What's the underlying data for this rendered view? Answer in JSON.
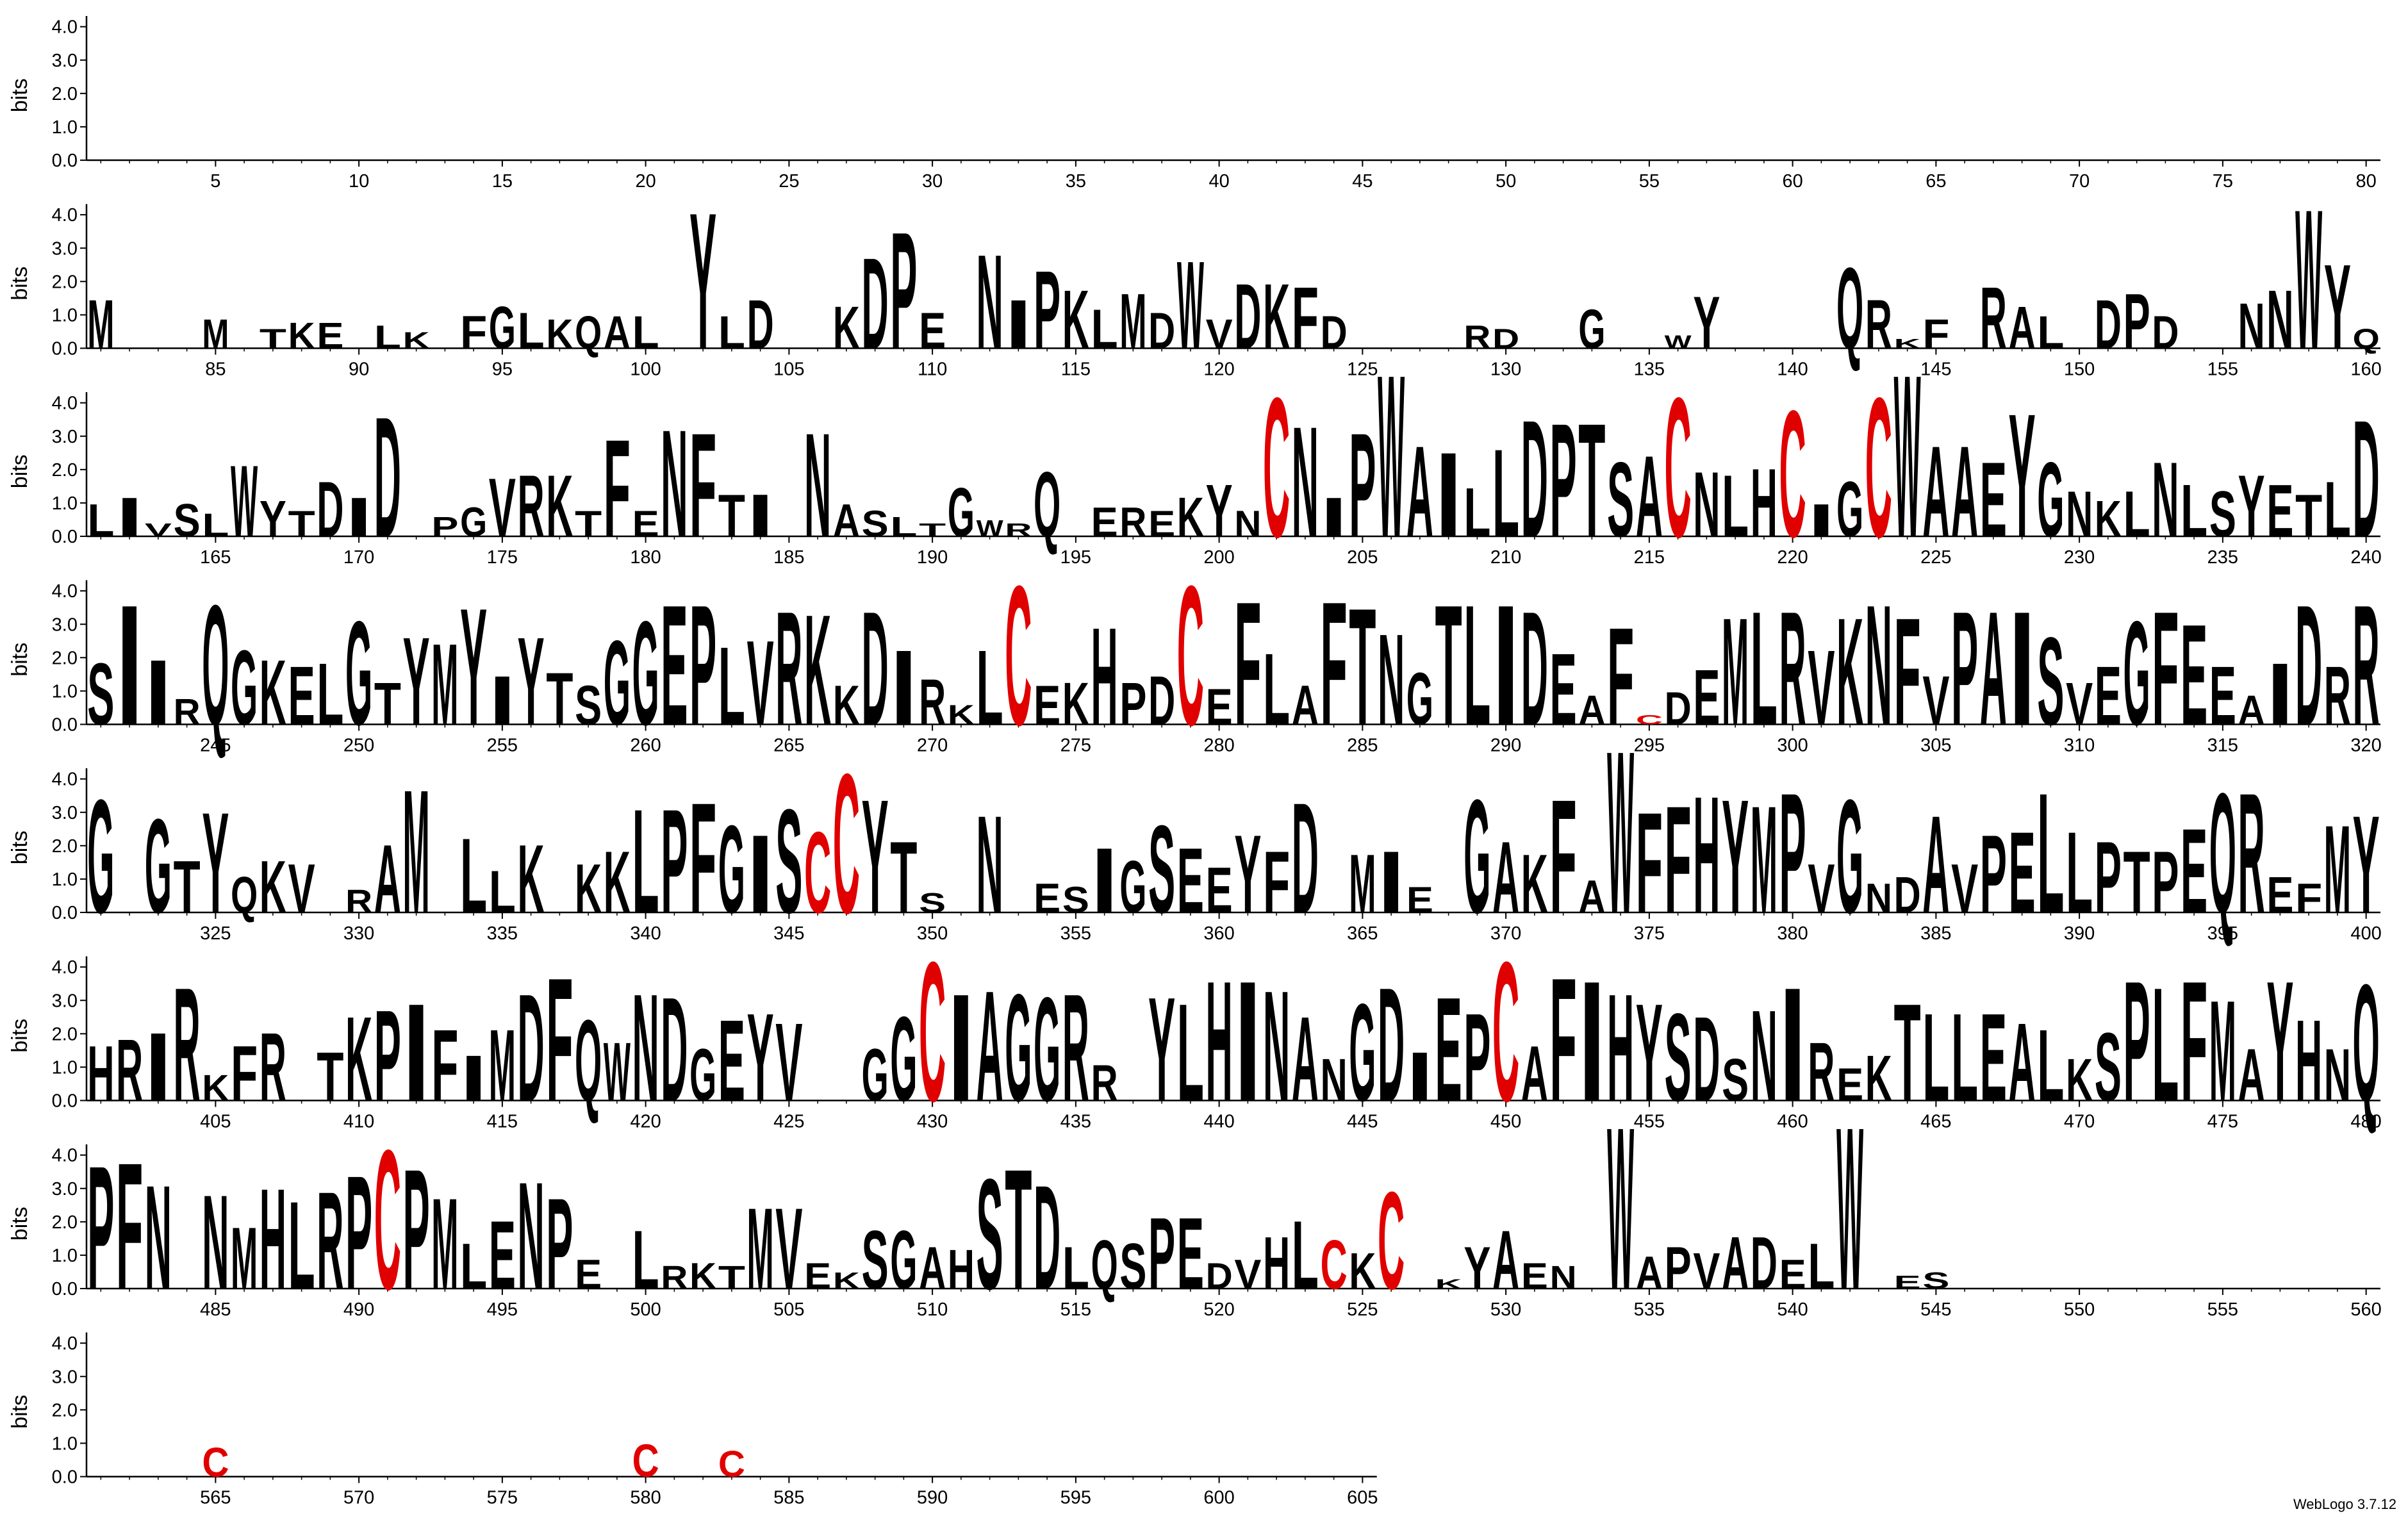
{
  "chart_data": {
    "type": "logo",
    "y_label": "bits",
    "footer": "WebLogo 3.7.12",
    "color": "#000000",
    "letter_colors": {
      "C": "#e00000"
    },
    "ylim": [
      0,
      4.32
    ],
    "yticks": [
      {
        "value": 0,
        "label": "0.0"
      },
      {
        "value": 1,
        "label": "1.0"
      },
      {
        "value": 2,
        "label": "2.0"
      },
      {
        "value": 3,
        "label": "3.0"
      },
      {
        "value": 4,
        "label": "4.0"
      }
    ],
    "xticks": [
      5,
      10,
      15,
      20,
      25,
      30,
      35,
      40,
      45,
      50,
      55,
      60,
      65,
      70,
      75,
      80,
      85,
      90,
      95,
      100,
      105,
      110,
      115,
      120,
      125,
      130,
      135,
      140,
      145,
      150,
      155,
      160,
      165,
      170,
      175,
      180,
      185,
      190,
      195,
      200,
      205,
      210,
      215,
      220,
      225,
      230,
      235,
      240,
      245,
      250,
      255,
      260,
      265,
      270,
      275,
      280,
      285,
      290,
      295,
      300,
      305,
      310,
      315,
      320,
      325,
      330,
      335,
      340,
      345,
      350,
      355,
      360,
      365,
      370,
      375,
      380,
      385,
      390,
      395,
      400,
      405,
      410,
      415,
      420,
      425,
      430,
      435,
      440,
      445,
      450,
      455,
      460,
      465,
      470,
      475,
      480,
      485,
      490,
      495,
      500,
      505,
      510,
      515,
      520,
      525,
      530,
      535,
      540,
      545,
      550,
      555,
      560,
      565,
      570,
      575,
      580,
      585,
      590,
      595,
      600,
      605
    ],
    "letters": [
      null,
      null,
      null,
      null,
      null,
      null,
      null,
      null,
      null,
      null,
      null,
      null,
      null,
      null,
      null,
      null,
      null,
      null,
      null,
      null,
      null,
      null,
      null,
      null,
      null,
      null,
      null,
      null,
      null,
      null,
      null,
      null,
      null,
      null,
      null,
      null,
      null,
      null,
      null,
      null,
      null,
      null,
      null,
      null,
      null,
      null,
      null,
      null,
      null,
      null,
      null,
      null,
      null,
      null,
      null,
      null,
      null,
      null,
      null,
      null,
      null,
      null,
      null,
      null,
      null,
      null,
      null,
      null,
      null,
      null,
      null,
      null,
      null,
      null,
      null,
      null,
      null,
      null,
      null,
      null,
      "M",
      null,
      null,
      null,
      "M",
      null,
      "T",
      "K",
      "E",
      null,
      "L",
      "K",
      null,
      "F",
      "G",
      "L",
      "K",
      "Q",
      "A",
      "L",
      null,
      "Y",
      "L",
      "D",
      null,
      null,
      "K",
      "D",
      "P",
      "E",
      null,
      "N",
      "I",
      "P",
      "K",
      "L",
      "M",
      "D",
      "W",
      "V",
      "D",
      "K",
      "F",
      "D",
      null,
      null,
      null,
      null,
      "R",
      "D",
      null,
      null,
      "G",
      null,
      null,
      "W",
      "Y",
      null,
      null,
      null,
      null,
      "Q",
      "R",
      "K",
      "F",
      null,
      "R",
      "A",
      "L",
      null,
      "D",
      "P",
      "D",
      null,
      null,
      "N",
      "N",
      "W",
      "Y",
      "Q",
      "L",
      "I",
      "V",
      "S",
      "L",
      "W",
      "Y",
      "T",
      "D",
      "I",
      "D",
      null,
      "P",
      "G",
      "V",
      "R",
      "K",
      "T",
      "F",
      "E",
      "N",
      "F",
      "T",
      "I",
      null,
      "N",
      "A",
      "S",
      "L",
      "T",
      "G",
      "W",
      "R",
      "Q",
      null,
      "E",
      "R",
      "E",
      "K",
      "Y",
      "N",
      "C",
      "N",
      "I",
      "P",
      "W",
      "A",
      "I",
      "L",
      "L",
      "D",
      "P",
      "T",
      "S",
      "A",
      "C",
      "N",
      "L",
      "H",
      "C",
      "I",
      "G",
      "C",
      "W",
      "A",
      "A",
      "E",
      "Y",
      "G",
      "N",
      "K",
      "L",
      "N",
      "L",
      "S",
      "Y",
      "E",
      "T",
      "L",
      "D",
      "S",
      "I",
      "I",
      "R",
      "Q",
      "G",
      "K",
      "E",
      "L",
      "G",
      "T",
      "Y",
      "M",
      "Y",
      "I",
      "Y",
      "T",
      "S",
      "G",
      "G",
      "E",
      "P",
      "L",
      "V",
      "R",
      "K",
      "K",
      "D",
      "I",
      "R",
      "K",
      "L",
      "C",
      "E",
      "K",
      "H",
      "P",
      "D",
      "C",
      "E",
      "F",
      "L",
      "A",
      "F",
      "T",
      "N",
      "G",
      "T",
      "L",
      "I",
      "D",
      "E",
      "A",
      "F",
      "C",
      "D",
      "E",
      "M",
      "L",
      "R",
      "V",
      "K",
      "N",
      "F",
      "V",
      "P",
      "A",
      "I",
      "S",
      "V",
      "E",
      "G",
      "F",
      "E",
      "E",
      "A",
      "I",
      "D",
      "R",
      "R",
      "G",
      null,
      "G",
      "T",
      "Y",
      "Q",
      "K",
      "V",
      null,
      "R",
      "A",
      "M",
      null,
      "L",
      "L",
      "K",
      null,
      "K",
      "K",
      "L",
      "P",
      "F",
      "G",
      "I",
      "S",
      "C",
      "C",
      "Y",
      "T",
      "S",
      null,
      "N",
      null,
      "E",
      "S",
      "I",
      "G",
      "S",
      "E",
      "E",
      "Y",
      "F",
      "D",
      null,
      "M",
      "I",
      "E",
      null,
      "G",
      "A",
      "K",
      "F",
      "A",
      "W",
      "F",
      "F",
      "H",
      "Y",
      "M",
      "P",
      "V",
      "G",
      "N",
      "D",
      "A",
      "V",
      "P",
      "E",
      "L",
      "L",
      "P",
      "T",
      "P",
      "E",
      "Q",
      "R",
      "E",
      "F",
      "M",
      "Y",
      "H",
      "R",
      "I",
      "R",
      "K",
      "F",
      "R",
      null,
      "T",
      "K",
      "P",
      "I",
      "F",
      "I",
      "M",
      "D",
      "F",
      "Q",
      "W",
      "N",
      "D",
      "G",
      "E",
      "Y",
      "V",
      null,
      null,
      "G",
      "G",
      "C",
      "I",
      "A",
      "G",
      "G",
      "R",
      "R",
      null,
      "Y",
      "L",
      "H",
      "I",
      "N",
      "A",
      "N",
      "G",
      "D",
      "I",
      "E",
      "P",
      "C",
      "A",
      "F",
      "I",
      "H",
      "Y",
      "S",
      "D",
      "S",
      "N",
      "I",
      "R",
      "E",
      "K",
      "T",
      "L",
      "L",
      "E",
      "A",
      "L",
      "K",
      "S",
      "P",
      "L",
      "F",
      "M",
      "A",
      "Y",
      "H",
      "N",
      "Q",
      "P",
      "F",
      "N",
      null,
      "N",
      "M",
      "H",
      "L",
      "R",
      "P",
      "C",
      "P",
      "M",
      "L",
      "E",
      "N",
      "P",
      "E",
      null,
      "L",
      "R",
      "K",
      "T",
      "M",
      "V",
      "E",
      "K",
      "S",
      "G",
      "A",
      "H",
      "S",
      "T",
      "D",
      "L",
      "Q",
      "S",
      "P",
      "E",
      "D",
      "V",
      "H",
      "L",
      "C",
      "K",
      "C",
      null,
      "K",
      "Y",
      "A",
      "E",
      "N",
      null,
      "W",
      "A",
      "P",
      "V",
      "A",
      "D",
      "E",
      "L",
      "W",
      null,
      "E",
      "S",
      null,
      null,
      null,
      null,
      null,
      null,
      null,
      null,
      null,
      null,
      null,
      null,
      null,
      null,
      null,
      null,
      null,
      null,
      null,
      "C",
      null,
      null,
      null,
      null,
      null,
      null,
      null,
      null,
      null,
      null,
      null,
      null,
      null,
      null,
      "C",
      null,
      null,
      "C",
      null,
      null,
      null,
      null,
      null,
      null,
      null,
      null,
      null,
      null,
      null,
      null,
      null,
      null,
      null,
      null,
      null,
      null,
      null,
      null,
      null,
      null
    ],
    "values": [
      null,
      null,
      null,
      null,
      null,
      null,
      null,
      null,
      null,
      null,
      null,
      null,
      null,
      null,
      null,
      null,
      null,
      null,
      null,
      null,
      null,
      null,
      null,
      null,
      null,
      null,
      null,
      null,
      null,
      null,
      null,
      null,
      null,
      null,
      null,
      null,
      null,
      null,
      null,
      null,
      null,
      null,
      null,
      null,
      null,
      null,
      null,
      null,
      null,
      null,
      null,
      null,
      null,
      null,
      null,
      null,
      null,
      null,
      null,
      null,
      null,
      null,
      null,
      null,
      null,
      null,
      null,
      null,
      null,
      null,
      null,
      null,
      null,
      null,
      null,
      null,
      null,
      null,
      null,
      null,
      1.5,
      null,
      null,
      null,
      0.9,
      null,
      0.6,
      0.8,
      0.8,
      null,
      0.7,
      0.5,
      null,
      1.0,
      1.3,
      1.1,
      0.9,
      1.0,
      1.0,
      1.0,
      null,
      4.2,
      1.0,
      1.5,
      null,
      null,
      1.3,
      2.8,
      3.6,
      1.1,
      null,
      2.9,
      1.5,
      2.4,
      1.8,
      1.2,
      1.7,
      1.1,
      2.7,
      0.9,
      2.0,
      2.0,
      1.9,
      1.0,
      null,
      null,
      null,
      null,
      0.7,
      0.6,
      null,
      null,
      1.2,
      null,
      null,
      0.4,
      1.6,
      null,
      null,
      null,
      null,
      2.5,
      1.5,
      0.3,
      0.9,
      null,
      1.9,
      1.3,
      1.0,
      null,
      1.5,
      1.7,
      1.0,
      null,
      null,
      1.4,
      1.8,
      4.3,
      2.6,
      0.6,
      1.0,
      1.2,
      0.4,
      1.0,
      0.7,
      2.2,
      1.1,
      0.8,
      1.7,
      1.2,
      3.7,
      null,
      0.6,
      0.9,
      1.8,
      1.9,
      1.9,
      0.8,
      3.0,
      0.8,
      3.3,
      3.2,
      1.3,
      1.3,
      null,
      3.2,
      1.0,
      0.8,
      0.6,
      0.4,
      1.5,
      0.5,
      0.4,
      2.0,
      null,
      0.9,
      0.9,
      0.8,
      1.2,
      1.6,
      0.8,
      4.3,
      3.4,
      1.2,
      3.2,
      5.0,
      2.8,
      2.6,
      1.5,
      2.7,
      3.6,
      3.5,
      3.5,
      2.3,
      2.5,
      4.3,
      2.0,
      1.9,
      2.1,
      3.9,
      1.0,
      1.7,
      4.3,
      5.0,
      2.8,
      2.8,
      2.3,
      3.8,
      2.3,
      1.4,
      1.1,
      1.4,
      2.3,
      1.6,
      1.4,
      1.9,
      1.6,
      1.3,
      1.7,
      3.6,
      1.9,
      3.7,
      2.0,
      0.8,
      3.7,
      2.3,
      2.0,
      1.8,
      1.9,
      3.2,
      1.3,
      2.7,
      2.5,
      3.6,
      1.5,
      2.7,
      1.6,
      1.2,
      2.6,
      3.2,
      3.7,
      3.7,
      2.4,
      2.6,
      3.5,
      3.4,
      1.2,
      3.5,
      2.3,
      1.4,
      0.6,
      2.3,
      4.3,
      1.2,
      1.3,
      3.0,
      1.3,
      1.5,
      4.3,
      1.1,
      3.8,
      2.2,
      1.2,
      3.8,
      3.6,
      2.8,
      1.6,
      3.7,
      3.7,
      3.7,
      3.5,
      2.2,
      0.9,
      3.0,
      0.3,
      1.0,
      1.7,
      3.3,
      3.5,
      3.5,
      2.3,
      3.3,
      3.7,
      3.3,
      1.5,
      3.5,
      3.5,
      3.5,
      2.7,
      1.3,
      1.8,
      3.2,
      3.5,
      3.1,
      1.8,
      0.9,
      1.9,
      3.7,
      1.8,
      3.7,
      3.5,
      null,
      2.9,
      1.6,
      3.1,
      1.1,
      1.6,
      1.5,
      null,
      0.7,
      2.1,
      3.8,
      null,
      2.3,
      1.3,
      2.1,
      null,
      1.5,
      1.9,
      3.2,
      3.2,
      3.4,
      2.7,
      2.4,
      3.2,
      2.5,
      4.3,
      3.5,
      2.2,
      0.6,
      null,
      3.0,
      null,
      0.9,
      0.8,
      2.0,
      1.6,
      2.7,
      2.0,
      1.4,
      2.4,
      1.9,
      3.4,
      null,
      1.8,
      1.9,
      0.8,
      null,
      3.5,
      2.2,
      1.8,
      3.5,
      1.0,
      5.0,
      3.1,
      3.3,
      3.6,
      3.5,
      3.3,
      3.7,
      1.5,
      3.5,
      0.9,
      1.1,
      3.0,
      1.5,
      2.4,
      2.5,
      3.7,
      2.5,
      2.2,
      1.9,
      1.9,
      2.6,
      3.7,
      3.7,
      1.1,
      0.9,
      2.7,
      3.0,
      1.7,
      1.9,
      2.1,
      3.5,
      0.8,
      1.7,
      2.1,
      null,
      1.5,
      2.6,
      2.8,
      3.0,
      2.2,
      1.4,
      2.2,
      3.3,
      3.8,
      2.5,
      1.8,
      3.3,
      3.2,
      1.6,
      2.5,
      2.7,
      2.4,
      null,
      null,
      1.6,
      2.6,
      4.3,
      3.3,
      3.4,
      3.3,
      3.2,
      3.3,
      1.1,
      null,
      3.2,
      3.0,
      3.7,
      3.7,
      3.4,
      2.6,
      1.3,
      3.0,
      3.5,
      1.5,
      3.2,
      2.7,
      4.3,
      1.7,
      3.8,
      3.7,
      3.3,
      3.0,
      2.7,
      2.6,
      1.3,
      2.8,
      3.5,
      1.8,
      1.0,
      1.4,
      3.0,
      2.7,
      2.7,
      2.7,
      2.4,
      2.2,
      1.3,
      2.1,
      3.7,
      3.5,
      3.7,
      3.1,
      1.6,
      3.7,
      2.5,
      1.6,
      3.6,
      3.8,
      3.9,
      3.2,
      null,
      2.9,
      1.9,
      3.1,
      2.7,
      3.0,
      3.5,
      4.3,
      3.7,
      2.8,
      1.4,
      2.1,
      3.3,
      2.8,
      0.9,
      null,
      1.8,
      0.7,
      0.8,
      0.7,
      2.5,
      2.5,
      0.8,
      0.5,
      1.8,
      1.8,
      1.3,
      1.2,
      3.4,
      3.7,
      3.2,
      1.3,
      1.5,
      1.4,
      2.2,
      2.2,
      0.8,
      0.9,
      1.6,
      2.1,
      1.5,
      1.1,
      3.0,
      null,
      0.3,
      1.3,
      1.8,
      0.8,
      0.7,
      null,
      5.0,
      1.0,
      1.3,
      1.1,
      1.6,
      1.6,
      0.9,
      1.4,
      5.0,
      null,
      0.4,
      0.5,
      null,
      null,
      null,
      null,
      null,
      null,
      null,
      null,
      null,
      null,
      null,
      null,
      null,
      null,
      null,
      null,
      null,
      null,
      null,
      0.9,
      null,
      null,
      null,
      null,
      null,
      null,
      null,
      null,
      null,
      null,
      null,
      null,
      null,
      null,
      1.0,
      null,
      null,
      0.8,
      null,
      null,
      null,
      null,
      null,
      null,
      null,
      null,
      null,
      null,
      null,
      null,
      null,
      null,
      null,
      null,
      null,
      null,
      null,
      null,
      null,
      null
    ]
  }
}
